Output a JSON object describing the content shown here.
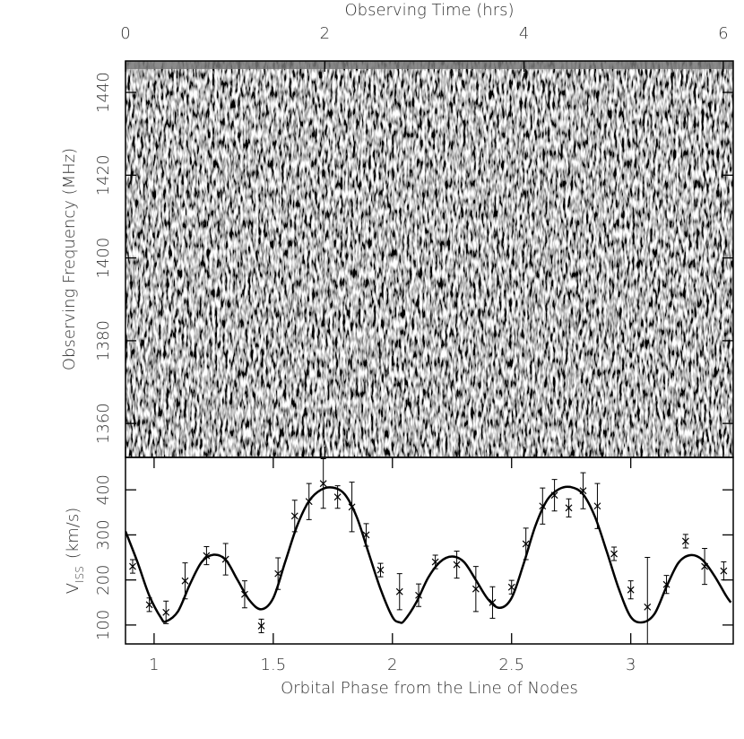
{
  "chart_data": [
    {
      "type": "image",
      "xlabel": "Observing Time (hrs)",
      "ylabel": "Observing Frequency (MHz)",
      "xlim": [
        0,
        6.1
      ],
      "xticks": [
        0,
        2,
        4,
        6
      ],
      "ylim": [
        1351.8,
        1447.6
      ],
      "yticks": [
        1360,
        1380,
        1400,
        1420,
        1440
      ]
    },
    {
      "type": "scatter",
      "xlabel": "Orbital Phase from the Line of Nodes",
      "ylabel": "V",
      "ylabel_subscript": "ISS",
      "ylabel_unit": "(km/s)",
      "xlim": [
        0.88,
        3.43
      ],
      "xticks": [
        1,
        1.5,
        2,
        2.5,
        3
      ],
      "ylim": [
        58,
        472
      ],
      "yticks": [
        100,
        200,
        300,
        400
      ],
      "color": "#000000",
      "points": {
        "x": [
          0.91,
          0.98,
          1.05,
          1.13,
          1.22,
          1.3,
          1.38,
          1.45,
          1.52,
          1.59,
          1.65,
          1.71,
          1.77,
          1.83,
          1.89,
          1.95,
          2.03,
          2.11,
          2.18,
          2.27,
          2.35,
          2.42,
          2.5,
          2.56,
          2.63,
          2.68,
          2.74,
          2.8,
          2.86,
          2.93,
          3.0,
          3.07,
          3.15,
          3.23,
          3.31,
          3.39
        ],
        "values": [
          230,
          145,
          128,
          198,
          254,
          246,
          168,
          98,
          214,
          342,
          374,
          414,
          384,
          362,
          300,
          222,
          174,
          166,
          240,
          234,
          180,
          150,
          184,
          280,
          364,
          388,
          360,
          398,
          364,
          258,
          178,
          140,
          190,
          286,
          230,
          220
        ],
        "errors": [
          15,
          15,
          25,
          40,
          20,
          35,
          30,
          15,
          35,
          35,
          40,
          55,
          25,
          55,
          25,
          15,
          40,
          25,
          15,
          30,
          50,
          35,
          15,
          35,
          40,
          35,
          20,
          40,
          50,
          15,
          20,
          110,
          20,
          15,
          40,
          20
        ]
      },
      "model": {
        "x": [
          0.88,
          0.93,
          0.98,
          1.03,
          1.05,
          1.1,
          1.15,
          1.2,
          1.25,
          1.3,
          1.35,
          1.4,
          1.45,
          1.5,
          1.55,
          1.6,
          1.65,
          1.7,
          1.75,
          1.8,
          1.85,
          1.9,
          1.95,
          2.0,
          2.03,
          2.05,
          2.1,
          2.15,
          2.2,
          2.25,
          2.3,
          2.35,
          2.4,
          2.45,
          2.5,
          2.55,
          2.6,
          2.65,
          2.7,
          2.75,
          2.8,
          2.85,
          2.9,
          2.95,
          3.0,
          3.05,
          3.1,
          3.15,
          3.2,
          3.25,
          3.3,
          3.35,
          3.4,
          3.42
        ],
        "values": [
          308,
          240,
          165,
          115,
          108,
          130,
          190,
          240,
          256,
          245,
          200,
          155,
          135,
          160,
          240,
          320,
          375,
          400,
          405,
          390,
          340,
          260,
          180,
          118,
          106,
          110,
          150,
          205,
          240,
          252,
          240,
          200,
          158,
          138,
          160,
          235,
          320,
          378,
          402,
          406,
          390,
          340,
          262,
          180,
          118,
          106,
          125,
          185,
          238,
          255,
          245,
          210,
          165,
          150
        ]
      }
    }
  ]
}
